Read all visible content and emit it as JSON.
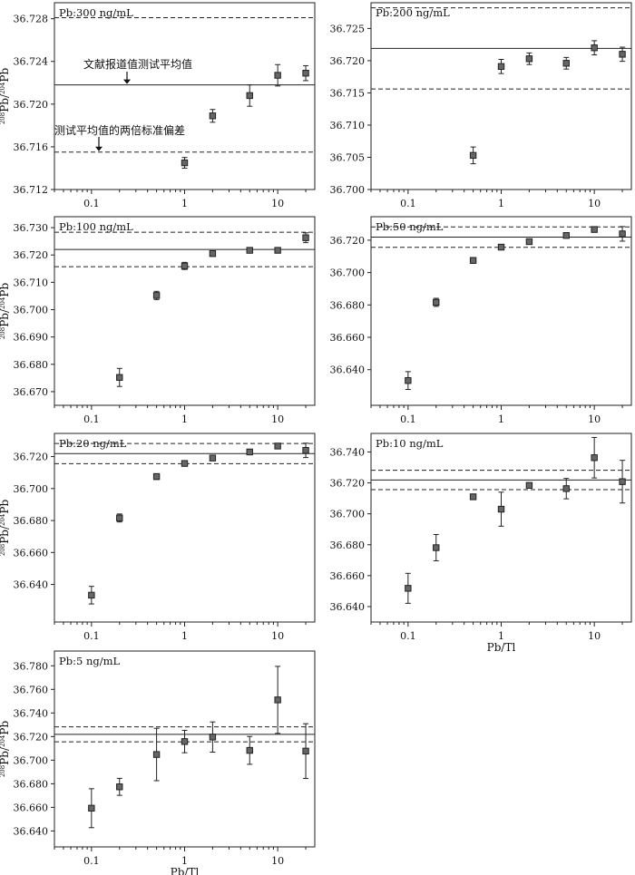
{
  "figure": {
    "xlabel": "Pb/Tl",
    "ylabel_parts": [
      "208",
      "Pb/",
      "204",
      "Pb"
    ],
    "annotations": [
      "文献报道值测试平均值",
      "测试平均值的两倍标准偏差"
    ]
  },
  "chart_data": [
    {
      "type": "scatter",
      "title": "Pb:300 ng/mL",
      "xscale": "log",
      "xticks": [
        0.1,
        1,
        10
      ],
      "x_tick_labels": [
        "0.1",
        "1",
        "10"
      ],
      "yticks": [
        36.712,
        36.716,
        36.72,
        36.724,
        36.728
      ],
      "y_tick_labels": [
        "36.712",
        "36.716",
        "36.720",
        "36.724",
        "36.728"
      ],
      "ylim": [
        36.712,
        36.7295
      ],
      "xlim": [
        0.04,
        25
      ],
      "reference_value": 36.7218,
      "two_sd_band": [
        36.7155,
        36.7281
      ],
      "grid": false,
      "points": [
        {
          "x": 1,
          "y": 36.7145,
          "err": 0.0005
        },
        {
          "x": 2,
          "y": 36.7189,
          "err": 0.0006
        },
        {
          "x": 5,
          "y": 36.7208,
          "err": 0.001
        },
        {
          "x": 10,
          "y": 36.7227,
          "err": 0.001
        },
        {
          "x": 20,
          "y": 36.7229,
          "err": 0.0007
        }
      ]
    },
    {
      "type": "scatter",
      "title": "Pb:200 ng/mL",
      "xscale": "log",
      "xticks": [
        0.1,
        1,
        10
      ],
      "x_tick_labels": [
        "0.1",
        "1",
        "10"
      ],
      "yticks": [
        36.7,
        36.705,
        36.71,
        36.715,
        36.72,
        36.725
      ],
      "y_tick_labels": [
        "36.700",
        "36.705",
        "36.710",
        "36.715",
        "36.720",
        "36.725"
      ],
      "ylim": [
        36.7,
        36.729
      ],
      "xlim": [
        0.04,
        25
      ],
      "reference_value": 36.7219,
      "two_sd_band": [
        36.7156,
        36.7282
      ],
      "grid": false,
      "points": [
        {
          "x": 0.5,
          "y": 36.7053,
          "err": 0.0013
        },
        {
          "x": 1,
          "y": 36.7191,
          "err": 0.0011
        },
        {
          "x": 2,
          "y": 36.7203,
          "err": 0.0009
        },
        {
          "x": 5,
          "y": 36.7196,
          "err": 0.0009
        },
        {
          "x": 10,
          "y": 36.722,
          "err": 0.0011
        },
        {
          "x": 20,
          "y": 36.721,
          "err": 0.0011
        }
      ]
    },
    {
      "type": "scatter",
      "title": "Pb:100 ng/mL",
      "xscale": "log",
      "xticks": [
        0.1,
        1,
        10
      ],
      "x_tick_labels": [
        "0.1",
        "1",
        "10"
      ],
      "yticks": [
        36.67,
        36.68,
        36.69,
        36.7,
        36.71,
        36.72,
        36.73
      ],
      "y_tick_labels": [
        "36.670",
        "36.680",
        "36.690",
        "36.700",
        "36.710",
        "36.720",
        "36.730"
      ],
      "ylim": [
        36.665,
        36.734
      ],
      "xlim": [
        0.04,
        25
      ],
      "reference_value": 36.722,
      "two_sd_band": [
        36.7157,
        36.7283
      ],
      "grid": false,
      "points": [
        {
          "x": 0.2,
          "y": 36.6752,
          "err": 0.0033
        },
        {
          "x": 0.5,
          "y": 36.7052,
          "err": 0.0015
        },
        {
          "x": 1,
          "y": 36.716,
          "err": 0.0013
        },
        {
          "x": 2,
          "y": 36.7205,
          "err": 0.0009
        },
        {
          "x": 5,
          "y": 36.7217,
          "err": 0.0008
        },
        {
          "x": 10,
          "y": 36.7217,
          "err": 0.0008
        },
        {
          "x": 20,
          "y": 36.7263,
          "err": 0.0018
        }
      ]
    },
    {
      "type": "scatter",
      "title": "Pb:50 ng/mL",
      "xscale": "log",
      "xticks": [
        0.1,
        1,
        10
      ],
      "x_tick_labels": [
        "0.1",
        "1",
        "10"
      ],
      "yticks": [
        36.64,
        36.66,
        36.68,
        36.7,
        36.72
      ],
      "y_tick_labels": [
        "36.640",
        "36.660",
        "36.680",
        "36.700",
        "36.720"
      ],
      "ylim": [
        36.618,
        36.7345
      ],
      "xlim": [
        0.04,
        25
      ],
      "reference_value": 36.7219,
      "two_sd_band": [
        36.7156,
        36.7282
      ],
      "grid": false,
      "points": [
        {
          "x": 0.1,
          "y": 36.6333,
          "err": 0.0055
        },
        {
          "x": 0.2,
          "y": 36.6816,
          "err": 0.0025
        },
        {
          "x": 0.5,
          "y": 36.7075,
          "err": 0.0018
        },
        {
          "x": 1,
          "y": 36.7157,
          "err": 0.0009
        },
        {
          "x": 2,
          "y": 36.7191,
          "err": 0.0009
        },
        {
          "x": 5,
          "y": 36.7229,
          "err": 0.0009
        },
        {
          "x": 10,
          "y": 36.7266,
          "err": 0.0009
        },
        {
          "x": 20,
          "y": 36.7239,
          "err": 0.0045
        }
      ]
    },
    {
      "type": "scatter",
      "title": "Pb:20 ng/mL",
      "xscale": "log",
      "xticks": [
        0.1,
        1,
        10
      ],
      "x_tick_labels": [
        "0.1",
        "1",
        "10"
      ],
      "yticks": [
        36.64,
        36.66,
        36.68,
        36.7,
        36.72
      ],
      "y_tick_labels": [
        "36.640",
        "36.660",
        "36.680",
        "36.700",
        "36.720"
      ],
      "ylim": [
        36.6165,
        36.7345
      ],
      "xlim": [
        0.04,
        25
      ],
      "reference_value": 36.7219,
      "two_sd_band": [
        36.7156,
        36.7282
      ],
      "grid": false,
      "points": [
        {
          "x": 0.1,
          "y": 36.6333,
          "err": 0.0055
        },
        {
          "x": 0.2,
          "y": 36.6816,
          "err": 0.0025
        },
        {
          "x": 0.5,
          "y": 36.7075,
          "err": 0.0018
        },
        {
          "x": 1,
          "y": 36.7157,
          "err": 0.0009
        },
        {
          "x": 2,
          "y": 36.7191,
          "err": 0.0009
        },
        {
          "x": 5,
          "y": 36.7229,
          "err": 0.0009
        },
        {
          "x": 10,
          "y": 36.7266,
          "err": 0.0009
        },
        {
          "x": 20,
          "y": 36.7239,
          "err": 0.0045
        }
      ]
    },
    {
      "type": "scatter",
      "title": "Pb:10 ng/mL",
      "xscale": "log",
      "xticks": [
        0.1,
        1,
        10
      ],
      "x_tick_labels": [
        "0.1",
        "1",
        "10"
      ],
      "yticks": [
        36.64,
        36.66,
        36.68,
        36.7,
        36.72,
        36.74
      ],
      "y_tick_labels": [
        "36.640",
        "36.660",
        "36.680",
        "36.700",
        "36.720",
        "36.740"
      ],
      "ylim": [
        36.63,
        36.752
      ],
      "xlim": [
        0.04,
        25
      ],
      "reference_value": 36.7219,
      "two_sd_band": [
        36.7156,
        36.7282
      ],
      "grid": false,
      "points": [
        {
          "x": 0.1,
          "y": 36.6518,
          "err": 0.0097
        },
        {
          "x": 0.2,
          "y": 36.6781,
          "err": 0.0085
        },
        {
          "x": 0.5,
          "y": 36.711,
          "err": 0.0013
        },
        {
          "x": 1,
          "y": 36.703,
          "err": 0.011
        },
        {
          "x": 2,
          "y": 36.7184,
          "err": 0.0011
        },
        {
          "x": 5,
          "y": 36.7163,
          "err": 0.0066
        },
        {
          "x": 10,
          "y": 36.7363,
          "err": 0.0131
        },
        {
          "x": 20,
          "y": 36.7208,
          "err": 0.0138
        }
      ]
    },
    {
      "type": "scatter",
      "title": "Pb:5 ng/mL",
      "xscale": "log",
      "xticks": [
        0.1,
        1,
        10
      ],
      "x_tick_labels": [
        "0.1",
        "1",
        "10"
      ],
      "yticks": [
        36.64,
        36.66,
        36.68,
        36.7,
        36.72,
        36.74,
        36.76,
        36.78
      ],
      "y_tick_labels": [
        "36.640",
        "36.660",
        "36.680",
        "36.700",
        "36.720",
        "36.740",
        "36.760",
        "36.780"
      ],
      "ylim": [
        36.6265,
        36.7925
      ],
      "xlim": [
        0.04,
        25
      ],
      "reference_value": 36.7219,
      "two_sd_band": [
        36.7156,
        36.7282
      ],
      "grid": false,
      "points": [
        {
          "x": 0.1,
          "y": 36.6593,
          "err": 0.0165
        },
        {
          "x": 0.2,
          "y": 36.6774,
          "err": 0.0072
        },
        {
          "x": 0.5,
          "y": 36.7048,
          "err": 0.0222
        },
        {
          "x": 1,
          "y": 36.7158,
          "err": 0.0095
        },
        {
          "x": 2,
          "y": 36.7196,
          "err": 0.0128
        },
        {
          "x": 5,
          "y": 36.7083,
          "err": 0.0118
        },
        {
          "x": 10,
          "y": 36.7511,
          "err": 0.0284
        },
        {
          "x": 20,
          "y": 36.7077,
          "err": 0.0232
        }
      ]
    }
  ]
}
